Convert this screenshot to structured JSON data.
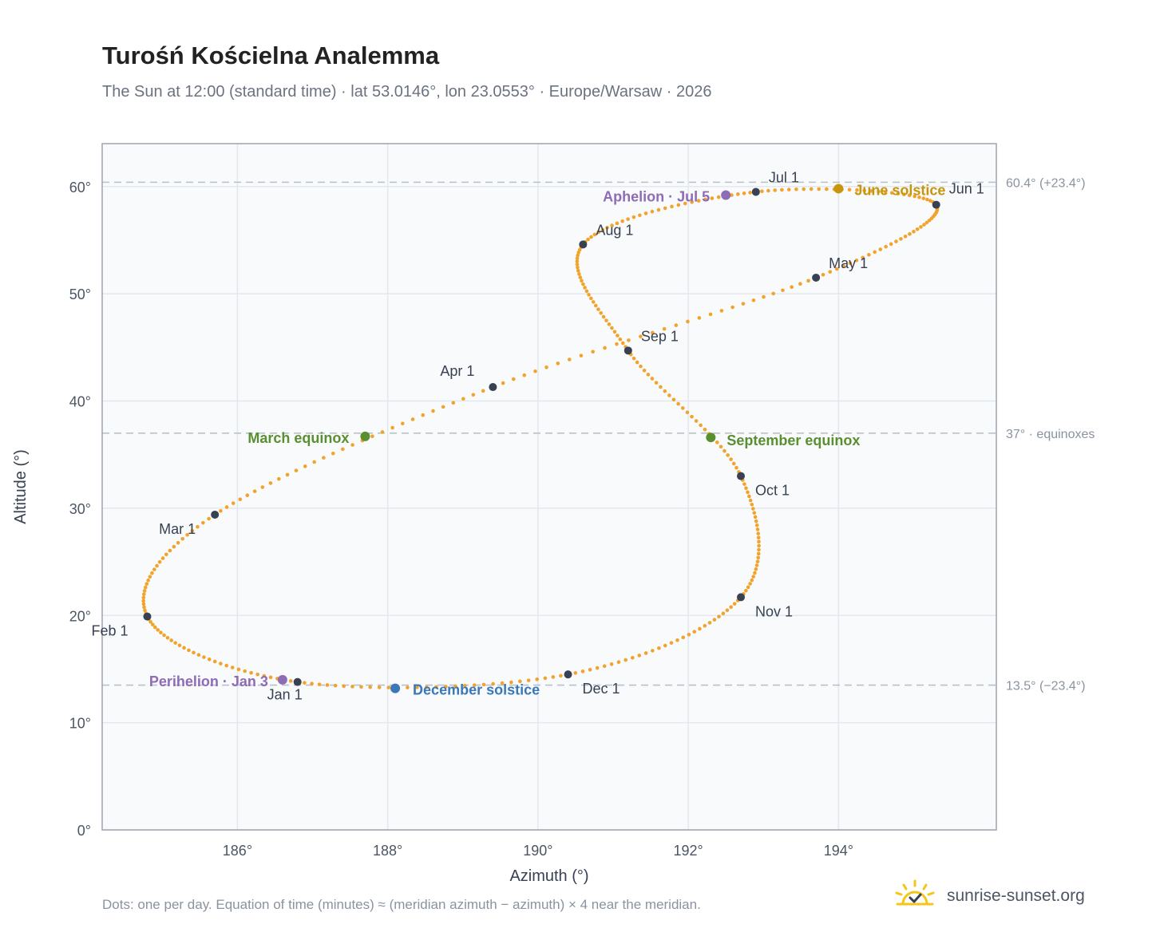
{
  "header": {
    "title": "Turośń Kościelna Analemma",
    "subtitle": "The Sun at 12:00 (standard time) · lat 53.0146°, lon 23.0553° · Europe/Warsaw · 2026"
  },
  "footer": {
    "note": "Dots: one per day. Equation of time (minutes) ≈ (meridian azimuth − azimuth) × 4 near the meridian.",
    "brand": "sunrise-sunset.org"
  },
  "colors": {
    "path": "#f2a32b",
    "month_marker": "#374151",
    "solstice_june": "#c8960c",
    "solstice_december": "#3a78b8",
    "equinox": "#5a8f30",
    "apsis": "#8e6bb5",
    "reference_line": "#b8c2cc",
    "plot_background": "#f8fafc"
  },
  "icons": {
    "brand_logo": "sun-check-icon"
  },
  "chart_data": {
    "type": "scatter",
    "xlabel": "Azimuth (°)",
    "ylabel": "Altitude (°)",
    "xlim": [
      184.2,
      196.1
    ],
    "ylim": [
      0,
      64
    ],
    "xticks": [
      186,
      188,
      190,
      192,
      194
    ],
    "xtick_labels": [
      "186°",
      "188°",
      "190°",
      "192°",
      "194°"
    ],
    "yticks": [
      0,
      10,
      20,
      30,
      40,
      50,
      60
    ],
    "ytick_labels": [
      "0°",
      "10°",
      "20°",
      "30°",
      "40°",
      "50°",
      "60°"
    ],
    "grid": true,
    "reference_lines": [
      {
        "y": 60.4,
        "label": "60.4° (+23.4°)"
      },
      {
        "y": 37.0,
        "label": "37° · equinoxes"
      },
      {
        "y": 13.5,
        "label": "13.5° (−23.4°)"
      }
    ],
    "month_markers": [
      {
        "label": "Jan 1",
        "azimuth": 186.8,
        "altitude": 13.8
      },
      {
        "label": "Feb 1",
        "azimuth": 184.8,
        "altitude": 19.9
      },
      {
        "label": "Mar 1",
        "azimuth": 185.7,
        "altitude": 29.4
      },
      {
        "label": "Apr 1",
        "azimuth": 189.4,
        "altitude": 41.3
      },
      {
        "label": "May 1",
        "azimuth": 193.7,
        "altitude": 51.5
      },
      {
        "label": "Jun 1",
        "azimuth": 195.3,
        "altitude": 58.3
      },
      {
        "label": "Jul 1",
        "azimuth": 192.9,
        "altitude": 59.5
      },
      {
        "label": "Aug 1",
        "azimuth": 190.6,
        "altitude": 54.6
      },
      {
        "label": "Sep 1",
        "azimuth": 191.2,
        "altitude": 44.7
      },
      {
        "label": "Oct 1",
        "azimuth": 192.7,
        "altitude": 33.0
      },
      {
        "label": "Nov 1",
        "azimuth": 192.7,
        "altitude": 21.7
      },
      {
        "label": "Dec 1",
        "azimuth": 190.4,
        "altitude": 14.5
      }
    ],
    "events": [
      {
        "label": "Perihelion · Jan 3",
        "azimuth": 186.6,
        "altitude": 14.0,
        "kind": "apsis"
      },
      {
        "label": "March equinox",
        "azimuth": 187.7,
        "altitude": 36.7,
        "kind": "equinox"
      },
      {
        "label": "June solstice",
        "azimuth": 194.0,
        "altitude": 59.8,
        "kind": "solstice_june"
      },
      {
        "label": "Aphelion · Jul 5",
        "azimuth": 192.5,
        "altitude": 59.2,
        "kind": "apsis"
      },
      {
        "label": "September equinox",
        "azimuth": 192.3,
        "altitude": 36.6,
        "kind": "equinox"
      },
      {
        "label": "December solstice",
        "azimuth": 188.1,
        "altitude": 13.2,
        "kind": "solstice_december"
      }
    ],
    "path_anchors": [
      {
        "day": 1,
        "azimuth": 186.8,
        "altitude": 13.8
      },
      {
        "day": 32,
        "azimuth": 184.8,
        "altitude": 19.9
      },
      {
        "day": 60,
        "azimuth": 185.7,
        "altitude": 29.4
      },
      {
        "day": 91,
        "azimuth": 189.4,
        "altitude": 41.3
      },
      {
        "day": 121,
        "azimuth": 193.7,
        "altitude": 51.5
      },
      {
        "day": 152,
        "azimuth": 195.3,
        "altitude": 58.3
      },
      {
        "day": 182,
        "azimuth": 192.9,
        "altitude": 59.5
      },
      {
        "day": 213,
        "azimuth": 190.6,
        "altitude": 54.6
      },
      {
        "day": 244,
        "azimuth": 191.2,
        "altitude": 44.7
      },
      {
        "day": 274,
        "azimuth": 192.7,
        "altitude": 33.0
      },
      {
        "day": 305,
        "azimuth": 192.7,
        "altitude": 21.7
      },
      {
        "day": 335,
        "azimuth": 190.4,
        "altitude": 14.5
      }
    ]
  }
}
